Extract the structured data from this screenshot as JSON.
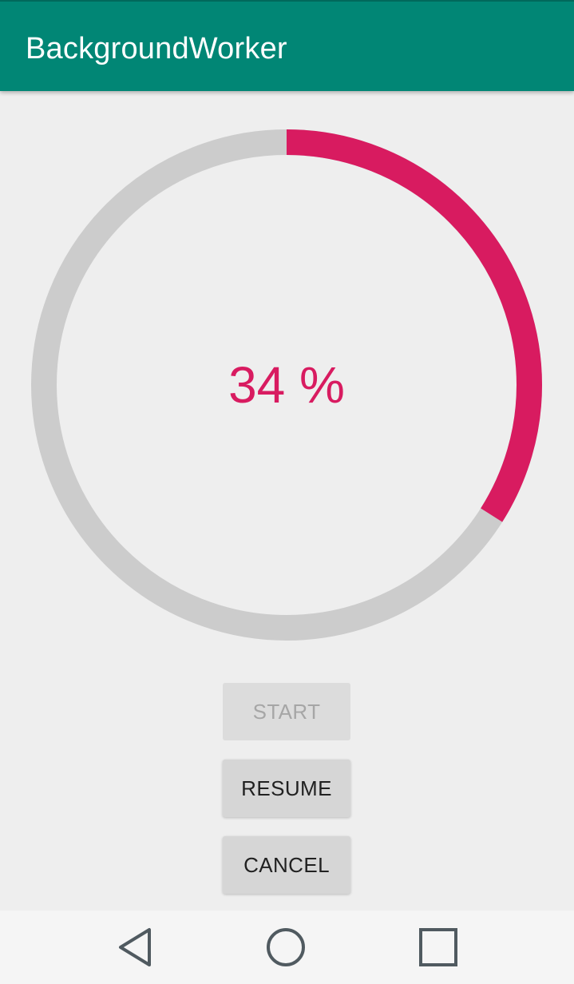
{
  "app_bar": {
    "title": "BackgroundWorker"
  },
  "progress": {
    "percent": 34,
    "label": "34 %",
    "track_color": "#cccccc",
    "fill_color": "#d81b60"
  },
  "buttons": {
    "start_label": "START",
    "resume_label": "RESUME",
    "cancel_label": "CANCEL"
  },
  "nav_bar": {
    "back_icon": "back-triangle-icon",
    "home_icon": "home-circle-icon",
    "recents_icon": "recents-square-icon"
  },
  "colors": {
    "primary": "#018675",
    "accent": "#d81b60",
    "background": "#eeeeee"
  }
}
